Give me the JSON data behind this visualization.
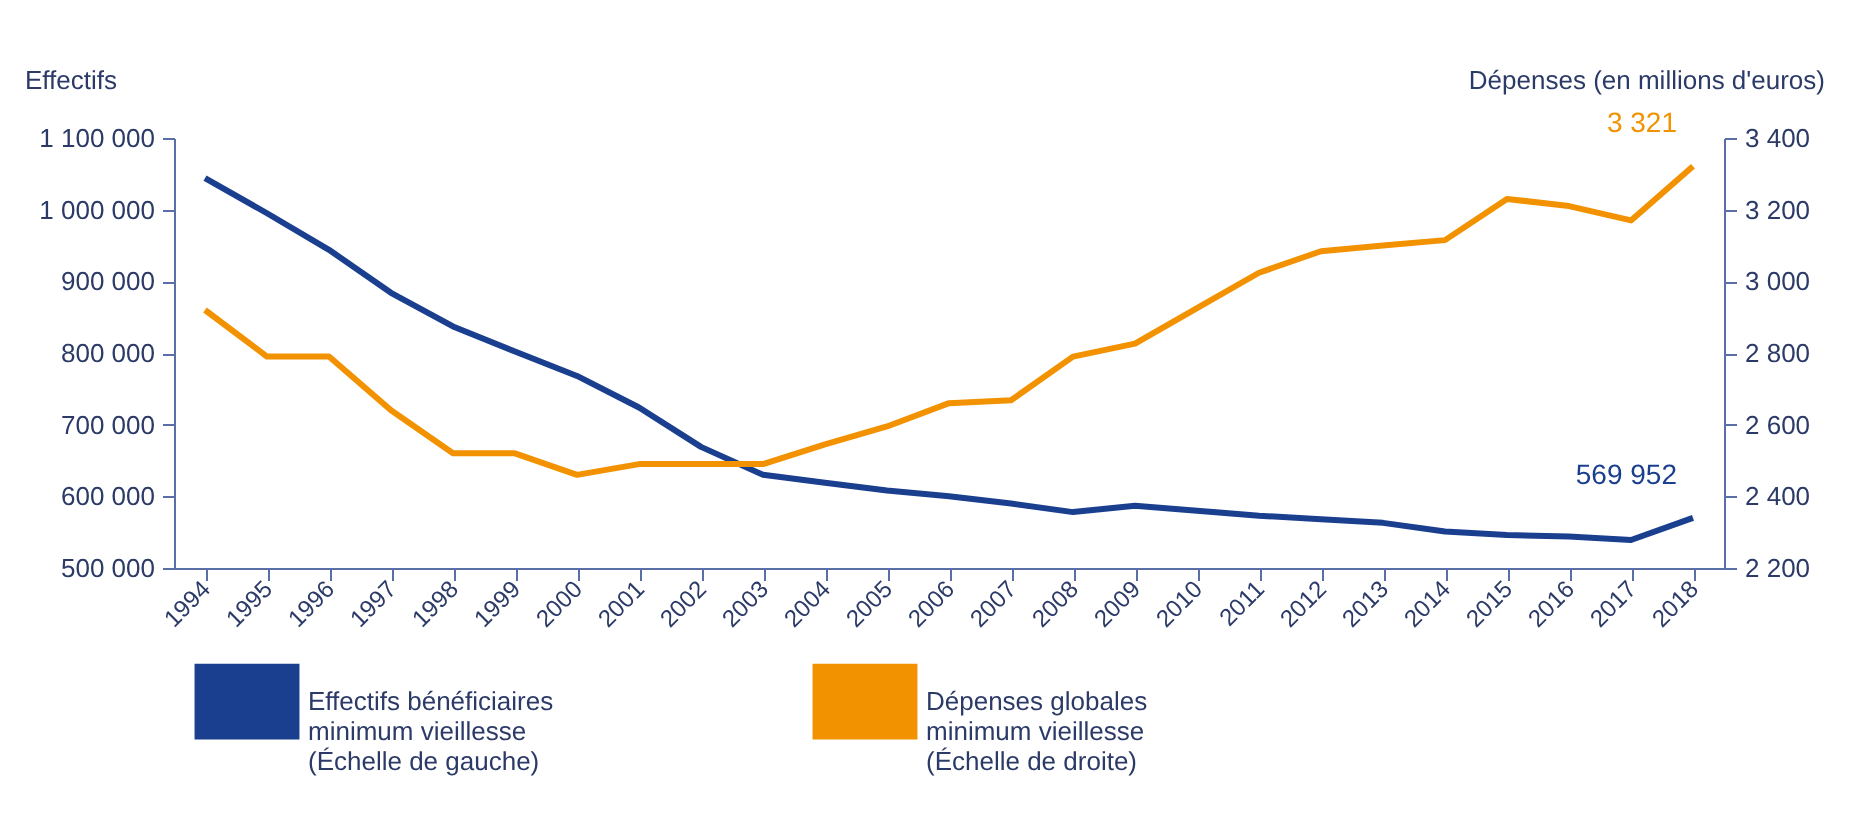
{
  "chart_data": {
    "type": "line",
    "ylabel": "Effectifs",
    "y2label": "Dépenses (en millions d'euros)",
    "categories": [
      "1994",
      "1995",
      "1996",
      "1997",
      "1998",
      "1999",
      "2000",
      "2001",
      "2002",
      "2003",
      "2004",
      "2005",
      "2006",
      "2007",
      "2008",
      "2009",
      "2010",
      "2011",
      "2012",
      "2013",
      "2014",
      "2015",
      "2016",
      "2017",
      "2018"
    ],
    "series": [
      {
        "name": "Effectifs bénéficiaires minimum vieillesse (Échelle de gauche)",
        "color": "#1b3f8f",
        "values": [
          1044000,
          995000,
          944000,
          884000,
          837000,
          802000,
          768000,
          724000,
          669000,
          630000,
          619000,
          608000,
          600000,
          590000,
          578000,
          587000,
          580000,
          573000,
          568000,
          563000,
          551000,
          546000,
          544000,
          539000,
          569952
        ],
        "value_labels": [
          null,
          null,
          null,
          null,
          null,
          null,
          null,
          null,
          null,
          null,
          null,
          null,
          null,
          null,
          null,
          null,
          null,
          null,
          null,
          null,
          null,
          null,
          null,
          null,
          "569 952"
        ]
      },
      {
        "name": "Dépenses globales minimum vieillesse (Échelle de droite)",
        "color": "#f39200",
        "axis": "y2",
        "values": [
          2920,
          2790,
          2790,
          2640,
          2520,
          2520,
          2460,
          2490,
          2490,
          2490,
          2545,
          2595,
          2660,
          2668,
          2790,
          2826,
          2925,
          3024,
          3084,
          3100,
          3115,
          3230,
          3210,
          3170,
          3321
        ],
        "value_labels": [
          null,
          null,
          null,
          null,
          null,
          null,
          null,
          null,
          null,
          null,
          null,
          null,
          null,
          null,
          null,
          null,
          null,
          null,
          null,
          null,
          null,
          null,
          null,
          null,
          "3 321"
        ]
      }
    ],
    "ylim": [
      500000,
      1100000
    ],
    "yticks": [
      500000,
      600000,
      700000,
      800000,
      900000,
      1000000,
      1100000
    ],
    "y2lim": [
      2200,
      3400
    ],
    "y2ticks": [
      2200,
      2400,
      2600,
      2800,
      3000,
      3200,
      3400
    ],
    "legend": "bottom",
    "grid": false,
    "marker": "none",
    "line_style": "solid"
  }
}
